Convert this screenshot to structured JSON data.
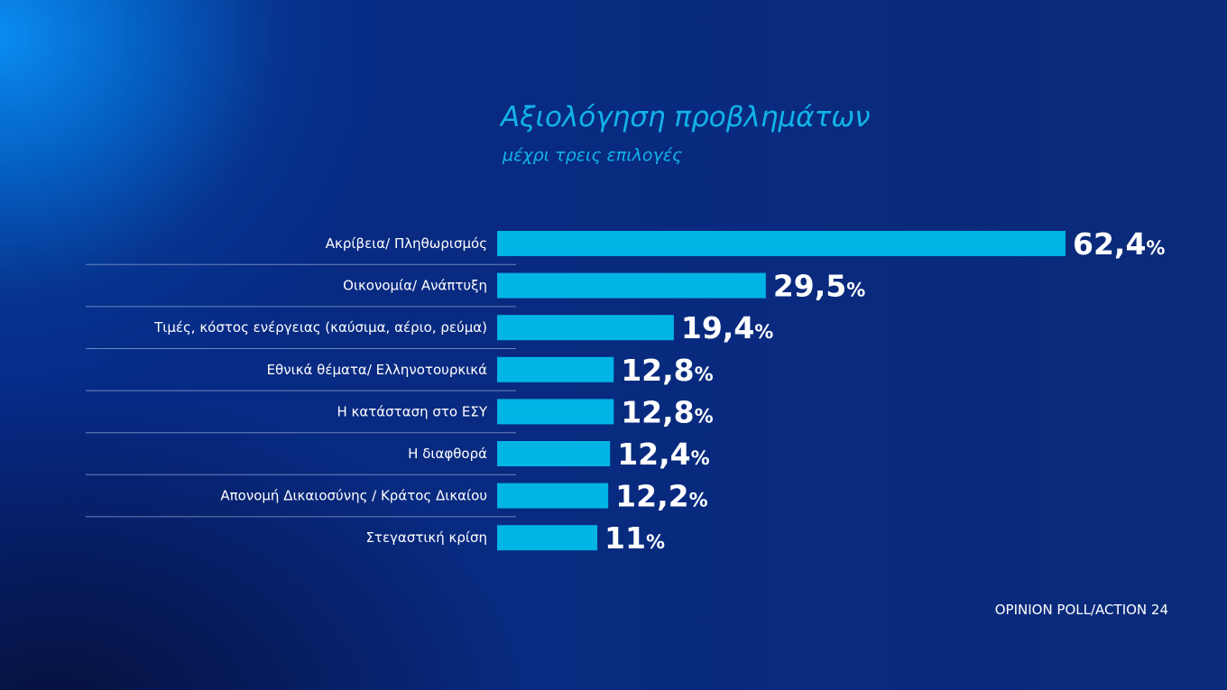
{
  "colors": {
    "bar": "#00b4e6",
    "title": "#12b3ea",
    "divider": "#8fa3cf"
  },
  "chart_data": {
    "type": "bar",
    "orientation": "horizontal",
    "title": "Αξιολόγηση προβλημάτων",
    "subtitle": "μέχρι τρεις επιλογές",
    "categories": [
      "Ακρίβεια/ Πληθωρισμός",
      "Οικονομία/ Ανάπτυξη",
      "Τιμές, κόστος ενέργειας (καύσιμα, αέριο, ρεύμα)",
      "Εθνικά θέματα/ Ελληνοτουρκικά",
      "Η κατάσταση στο ΕΣΥ",
      "Η διαφθορά",
      "Απονομή Δικαιοσύνης / Κράτος Δικαίου",
      "Στεγαστική κρίση"
    ],
    "values": [
      62.4,
      29.5,
      19.4,
      12.8,
      12.8,
      12.4,
      12.2,
      11
    ],
    "value_labels": [
      "62,4",
      "29,5",
      "19,4",
      "12,8",
      "12,8",
      "12,4",
      "12,2",
      "11"
    ],
    "unit": "%",
    "xlim": [
      0,
      62.4
    ],
    "grid": false,
    "legend": "none",
    "source": "OPINION POLL/ACTION 24"
  }
}
